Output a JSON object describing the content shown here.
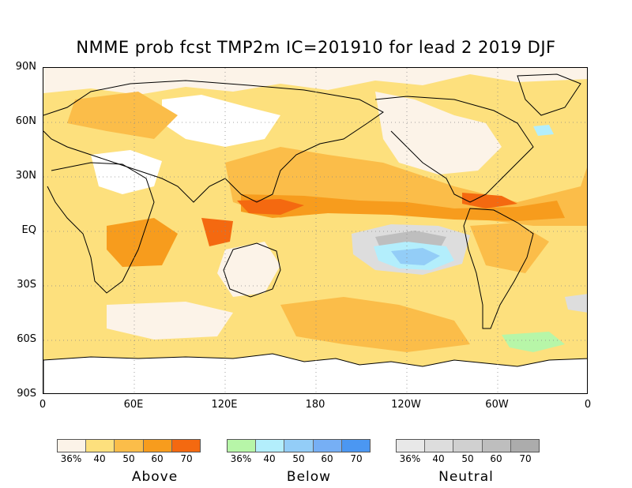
{
  "title": "NMME prob fcst TMP2m IC=201910 for lead 2 2019 DJF",
  "lat_labels": [
    "90N",
    "60N",
    "30N",
    "EQ",
    "30S",
    "60S",
    "90S"
  ],
  "lon_labels": [
    "0",
    "60E",
    "120E",
    "180",
    "120W",
    "60W",
    "0"
  ],
  "legends": [
    {
      "name": "Above",
      "ticks": [
        "36%",
        "40",
        "50",
        "60",
        "70"
      ],
      "colors": [
        "#fcf3e8",
        "#fde07d",
        "#fbbd49",
        "#f79c1d",
        "#f46910"
      ]
    },
    {
      "name": "Below",
      "ticks": [
        "36%",
        "40",
        "50",
        "60",
        "70"
      ],
      "colors": [
        "#b7f6a8",
        "#b3eefc",
        "#93cdf7",
        "#76aff5",
        "#4b97f2"
      ]
    },
    {
      "name": "Neutral",
      "ticks": [
        "36%",
        "40",
        "50",
        "60",
        "70"
      ],
      "colors": [
        "#e8e8e8",
        "#dddddd",
        "#d0d0d0",
        "#bebebe",
        "#acacac"
      ]
    }
  ]
}
